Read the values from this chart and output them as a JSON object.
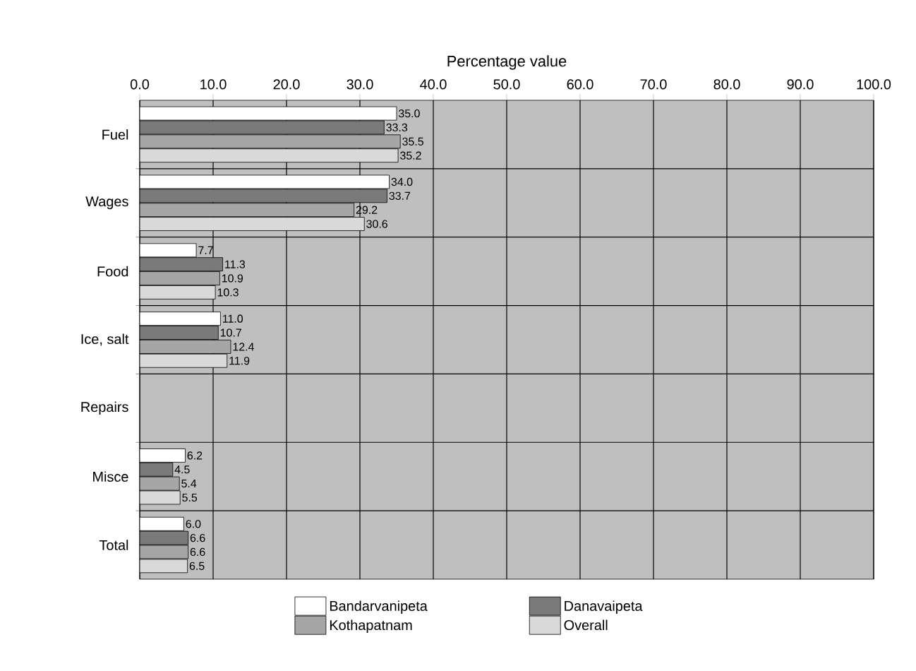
{
  "chart_data": {
    "type": "bar",
    "orientation": "horizontal",
    "xlabel": "Percentage value",
    "categories": [
      "Fuel",
      "Wages",
      "Food",
      "Ice, salt",
      "Repairs",
      "Misce",
      "Total"
    ],
    "series": [
      {
        "name": "Bandarvanipeta",
        "color": "#ffffff",
        "values": [
          35.0,
          34.0,
          7.7,
          11.0,
          null,
          6.2,
          6.0
        ],
        "value_labels": [
          "35.0",
          "34.0",
          "7.7",
          "11.0",
          null,
          "6.2",
          "6.0"
        ]
      },
      {
        "name": "Danavaipeta",
        "color": "#7a7a7a",
        "values": [
          33.3,
          33.7,
          11.3,
          10.7,
          null,
          4.5,
          6.6
        ],
        "value_labels": [
          "33.3",
          "33.7",
          "11.3",
          "10.7",
          null,
          "4.5",
          "6.6"
        ]
      },
      {
        "name": "Kothapatnam",
        "color": "#a6a6a6",
        "values": [
          35.5,
          29.2,
          10.9,
          12.4,
          null,
          5.4,
          6.6
        ],
        "value_labels": [
          "35.5",
          "29.2",
          "10.9",
          "12.4",
          null,
          "5.4",
          "6.6"
        ]
      },
      {
        "name": "Overall",
        "color": "#d9d9d9",
        "values": [
          35.2,
          30.6,
          10.3,
          11.9,
          null,
          5.5,
          6.5
        ],
        "value_labels": [
          "35.2",
          "30.6",
          "10.3",
          "11.9",
          null,
          "5.5",
          "6.5"
        ]
      }
    ],
    "xlim": [
      0,
      100
    ],
    "xticks": [
      {
        "value": 0,
        "label": "0.0"
      },
      {
        "value": 10,
        "label": "10.0"
      },
      {
        "value": 20,
        "label": "20.0"
      },
      {
        "value": 30,
        "label": "30.0"
      },
      {
        "value": 40,
        "label": "40.0"
      },
      {
        "value": 50,
        "label": "50.0"
      },
      {
        "value": 60,
        "label": "60.0"
      },
      {
        "value": 70,
        "label": "70.0"
      },
      {
        "value": 80,
        "label": "80.0"
      },
      {
        "value": 90,
        "label": "90.0"
      },
      {
        "value": 100,
        "label": "100.0"
      }
    ],
    "grid": true,
    "legend": "bottom"
  }
}
